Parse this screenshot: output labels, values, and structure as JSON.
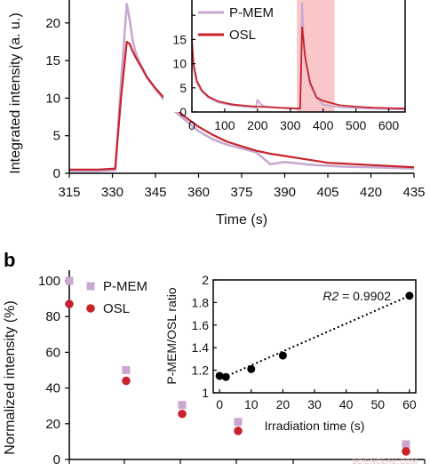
{
  "panel_b_label": "b",
  "watermark": "SCIENCEAU.COM",
  "colors": {
    "pmem": "#c8a8d0",
    "osl": "#c8232c",
    "highlight": "#f7b4b4"
  },
  "chart_data": [
    {
      "id": "panel-a-main",
      "type": "line",
      "xlabel": "Time (s)",
      "ylabel": "Integrated intensity (a. u.)",
      "xlim": [
        315,
        435
      ],
      "ylim": [
        0,
        24
      ],
      "xticks": [
        315,
        330,
        345,
        360,
        375,
        390,
        405,
        420,
        435
      ],
      "yticks": [
        0,
        5,
        10,
        15,
        20
      ],
      "series": [
        {
          "name": "P-MEM",
          "x": [
            315,
            320,
            325,
            330,
            331,
            333,
            335,
            336,
            337,
            338,
            339,
            340,
            342,
            345,
            350,
            355,
            360,
            365,
            370,
            375,
            380,
            385,
            390,
            395,
            400,
            405,
            410,
            420,
            430,
            435
          ],
          "y": [
            0.3,
            0.3,
            0.3,
            0.4,
            0.4,
            12,
            22.5,
            20.5,
            17.8,
            16.2,
            15.2,
            14.3,
            12.8,
            11.2,
            8.8,
            7.2,
            5.6,
            4.5,
            3.8,
            3.3,
            2.8,
            1.2,
            1.5,
            1.3,
            1.1,
            1.0,
            0.9,
            0.8,
            0.7,
            0.6
          ]
        },
        {
          "name": "OSL",
          "x": [
            315,
            320,
            325,
            330,
            331,
            333,
            335,
            336,
            337,
            338,
            339,
            340,
            342,
            345,
            350,
            355,
            360,
            365,
            370,
            375,
            380,
            385,
            390,
            395,
            400,
            405,
            410,
            420,
            430,
            435
          ],
          "y": [
            0.5,
            0.5,
            0.5,
            0.6,
            0.6,
            10,
            17.5,
            17.2,
            16.3,
            15.5,
            14.8,
            14.2,
            12.8,
            11.3,
            9.2,
            7.6,
            6.2,
            5.1,
            4.2,
            3.6,
            3.0,
            2.6,
            2.3,
            2.0,
            1.7,
            1.4,
            1.3,
            1.1,
            0.9,
            0.8
          ]
        }
      ]
    },
    {
      "id": "panel-a-inset",
      "type": "line",
      "xlim": [
        0,
        650
      ],
      "ylim": [
        0,
        25
      ],
      "xticks": [
        0,
        100,
        200,
        300,
        400,
        500,
        600
      ],
      "yticks": [
        0,
        5,
        10,
        15,
        20
      ],
      "ytick_labels_shown": [
        0,
        5,
        10,
        15
      ],
      "highlight_x": [
        320,
        435
      ],
      "legend": [
        "P-MEM",
        "OSL"
      ],
      "legend_position": "top-left",
      "series": [
        {
          "name": "P-MEM",
          "x": [
            0,
            5,
            15,
            30,
            50,
            80,
            120,
            160,
            195,
            200,
            205,
            210,
            220,
            260,
            300,
            330,
            333,
            336,
            340,
            345,
            360,
            380,
            400,
            450,
            500,
            550,
            600,
            650
          ],
          "y": [
            14,
            9,
            6,
            4.2,
            3.0,
            2.0,
            1.4,
            1.1,
            0.9,
            2.5,
            2.0,
            1.6,
            1.2,
            0.9,
            0.7,
            0.6,
            12,
            22.5,
            16,
            11.5,
            5.5,
            3.0,
            1.5,
            1.0,
            0.8,
            0.7,
            0.6,
            0.5
          ]
        },
        {
          "name": "OSL",
          "x": [
            0,
            5,
            15,
            30,
            50,
            80,
            120,
            160,
            200,
            260,
            300,
            330,
            333,
            336,
            340,
            345,
            360,
            380,
            400,
            450,
            500,
            550,
            600,
            650
          ],
          "y": [
            15,
            10,
            6.5,
            4.5,
            3.2,
            2.2,
            1.6,
            1.3,
            1.1,
            0.9,
            0.8,
            0.7,
            9,
            17.5,
            15,
            11.3,
            6.2,
            3.0,
            2.3,
            1.4,
            1.1,
            0.9,
            0.8,
            0.7
          ]
        }
      ]
    },
    {
      "id": "panel-b-main",
      "type": "scatter",
      "ylabel": "Normalized intensity (%)",
      "ylim": [
        0,
        105
      ],
      "yticks": [
        0,
        20,
        40,
        60,
        80,
        100
      ],
      "legend": [
        "P-MEM",
        "OSL"
      ],
      "legend_position": "top-left",
      "series": [
        {
          "name": "P-MEM",
          "marker": "square",
          "x": [
            0,
            1,
            2,
            3,
            6
          ],
          "y": [
            100,
            50,
            30.5,
            21,
            8.5
          ]
        },
        {
          "name": "OSL",
          "marker": "circle",
          "x": [
            0,
            1,
            2,
            3,
            6
          ],
          "y": [
            87,
            44,
            25.5,
            16,
            4.5
          ]
        }
      ]
    },
    {
      "id": "panel-b-inset",
      "type": "scatter",
      "xlabel": "Irradiation time (s)",
      "ylabel": "P-MEM/OSL ratio",
      "xlim": [
        -2,
        62
      ],
      "ylim": [
        1,
        2
      ],
      "xticks": [
        0,
        10,
        20,
        30,
        40,
        50,
        60
      ],
      "yticks": [
        1,
        1.2,
        1.4,
        1.6,
        1.8,
        2
      ],
      "ytick_labels": [
        "1",
        "1.2",
        "1.4",
        "1.6",
        "1.8",
        "2"
      ],
      "annotation_var": "R2",
      "annotation_value": " = 0.9902",
      "points": {
        "x": [
          0,
          2,
          10,
          20,
          60
        ],
        "y": [
          1.15,
          1.14,
          1.21,
          1.33,
          1.86
        ]
      },
      "fit": {
        "x": [
          0,
          60
        ],
        "y": [
          1.12,
          1.86
        ]
      }
    }
  ]
}
